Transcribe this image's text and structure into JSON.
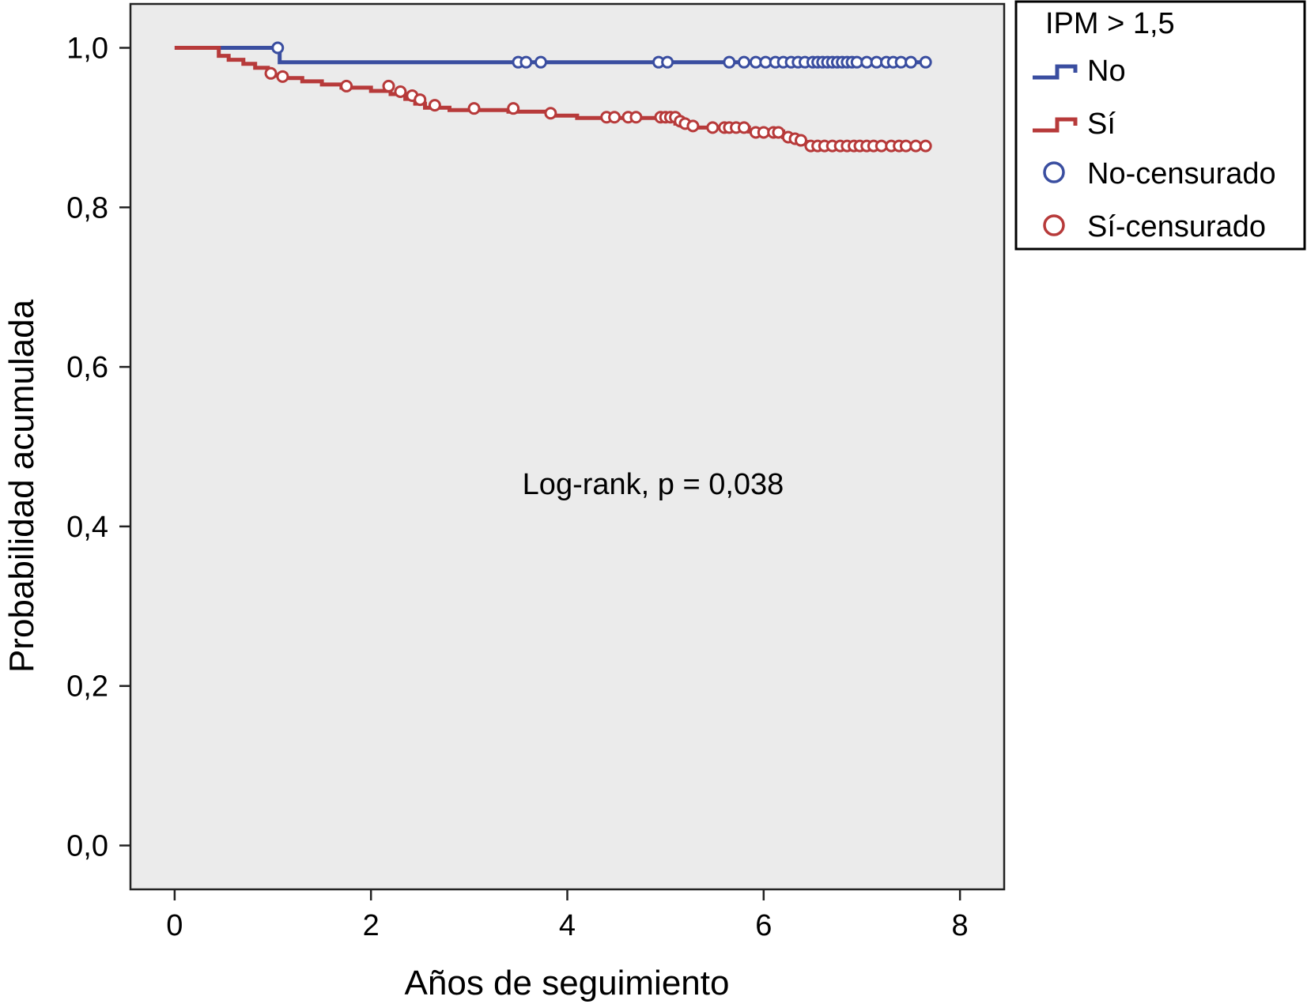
{
  "chart_data": {
    "type": "line",
    "title": "",
    "xlabel": "Años de seguimiento",
    "ylabel": "Probabilidad acumulada",
    "xlim": [
      -0.45,
      8.45
    ],
    "ylim": [
      -0.055,
      1.055
    ],
    "xticks": [
      0,
      2,
      4,
      6,
      8
    ],
    "xtick_labels": [
      "0",
      "2",
      "4",
      "6",
      "8"
    ],
    "yticks": [
      0.0,
      0.2,
      0.4,
      0.6,
      0.8,
      1.0
    ],
    "ytick_labels": [
      "0,0",
      "0,2",
      "0,4",
      "0,6",
      "0,8",
      "1,0"
    ],
    "grid": false,
    "background": "#ebebeb",
    "annotation": "Log-rank, p = 0,038",
    "legend": {
      "title": "IPM > 1,5",
      "placement": "outside-top-right",
      "entries": [
        {
          "label": "No",
          "kind": "step",
          "color": "#3a4ea0"
        },
        {
          "label": "Sí",
          "kind": "step",
          "color": "#b73a3a"
        },
        {
          "label": "No-censurado",
          "kind": "circle",
          "color": "#3a4ea0"
        },
        {
          "label": "Sí-censurado",
          "kind": "circle",
          "color": "#b73a3a"
        }
      ]
    },
    "series": [
      {
        "name": "No",
        "color": "#3a4ea0",
        "step": [
          [
            0,
            1.0
          ],
          [
            1.07,
            1.0
          ],
          [
            1.07,
            0.982
          ],
          [
            7.65,
            0.982
          ]
        ],
        "censored": [
          [
            1.05,
            1.0
          ],
          [
            3.5,
            0.982
          ],
          [
            3.58,
            0.982
          ],
          [
            3.73,
            0.982
          ],
          [
            4.93,
            0.982
          ],
          [
            5.02,
            0.982
          ],
          [
            5.65,
            0.982
          ],
          [
            5.8,
            0.982
          ],
          [
            5.92,
            0.982
          ],
          [
            6.02,
            0.982
          ],
          [
            6.12,
            0.982
          ],
          [
            6.2,
            0.982
          ],
          [
            6.28,
            0.982
          ],
          [
            6.35,
            0.982
          ],
          [
            6.42,
            0.982
          ],
          [
            6.5,
            0.982
          ],
          [
            6.55,
            0.982
          ],
          [
            6.6,
            0.982
          ],
          [
            6.65,
            0.982
          ],
          [
            6.7,
            0.982
          ],
          [
            6.75,
            0.982
          ],
          [
            6.8,
            0.982
          ],
          [
            6.85,
            0.982
          ],
          [
            6.9,
            0.982
          ],
          [
            6.95,
            0.982
          ],
          [
            7.05,
            0.982
          ],
          [
            7.15,
            0.982
          ],
          [
            7.25,
            0.982
          ],
          [
            7.32,
            0.982
          ],
          [
            7.4,
            0.982
          ],
          [
            7.5,
            0.982
          ],
          [
            7.65,
            0.982
          ]
        ]
      },
      {
        "name": "Sí",
        "color": "#b73a3a",
        "step": [
          [
            0,
            1.0
          ],
          [
            0.45,
            1.0
          ],
          [
            0.45,
            0.99
          ],
          [
            0.55,
            0.99
          ],
          [
            0.55,
            0.985
          ],
          [
            0.7,
            0.985
          ],
          [
            0.7,
            0.98
          ],
          [
            0.82,
            0.98
          ],
          [
            0.82,
            0.975
          ],
          [
            0.95,
            0.975
          ],
          [
            0.95,
            0.97
          ],
          [
            1.0,
            0.97
          ],
          [
            1.0,
            0.965
          ],
          [
            1.12,
            0.965
          ],
          [
            1.12,
            0.962
          ],
          [
            1.3,
            0.962
          ],
          [
            1.3,
            0.958
          ],
          [
            1.5,
            0.958
          ],
          [
            1.5,
            0.954
          ],
          [
            1.7,
            0.954
          ],
          [
            1.7,
            0.95
          ],
          [
            2.0,
            0.95
          ],
          [
            2.0,
            0.946
          ],
          [
            2.2,
            0.946
          ],
          [
            2.2,
            0.942
          ],
          [
            2.35,
            0.942
          ],
          [
            2.35,
            0.936
          ],
          [
            2.45,
            0.936
          ],
          [
            2.45,
            0.93
          ],
          [
            2.55,
            0.93
          ],
          [
            2.55,
            0.925
          ],
          [
            2.8,
            0.925
          ],
          [
            2.8,
            0.922
          ],
          [
            3.4,
            0.922
          ],
          [
            3.4,
            0.92
          ],
          [
            3.85,
            0.92
          ],
          [
            3.85,
            0.915
          ],
          [
            4.1,
            0.915
          ],
          [
            4.1,
            0.912
          ],
          [
            5.1,
            0.912
          ],
          [
            5.1,
            0.905
          ],
          [
            5.25,
            0.905
          ],
          [
            5.25,
            0.9
          ],
          [
            5.85,
            0.9
          ],
          [
            5.85,
            0.895
          ],
          [
            6.2,
            0.895
          ],
          [
            6.2,
            0.888
          ],
          [
            6.35,
            0.888
          ],
          [
            6.35,
            0.882
          ],
          [
            6.45,
            0.882
          ],
          [
            6.45,
            0.875
          ],
          [
            7.65,
            0.875
          ]
        ],
        "censored": [
          [
            0.98,
            0.968
          ],
          [
            1.1,
            0.964
          ],
          [
            1.75,
            0.952
          ],
          [
            2.18,
            0.952
          ],
          [
            2.3,
            0.945
          ],
          [
            2.42,
            0.94
          ],
          [
            2.5,
            0.935
          ],
          [
            2.65,
            0.928
          ],
          [
            3.05,
            0.924
          ],
          [
            3.45,
            0.924
          ],
          [
            3.83,
            0.918
          ],
          [
            4.4,
            0.913
          ],
          [
            4.48,
            0.913
          ],
          [
            4.62,
            0.913
          ],
          [
            4.7,
            0.913
          ],
          [
            4.95,
            0.913
          ],
          [
            5.0,
            0.913
          ],
          [
            5.05,
            0.913
          ],
          [
            5.1,
            0.913
          ],
          [
            5.15,
            0.908
          ],
          [
            5.2,
            0.905
          ],
          [
            5.28,
            0.902
          ],
          [
            5.48,
            0.9
          ],
          [
            5.6,
            0.9
          ],
          [
            5.65,
            0.9
          ],
          [
            5.72,
            0.9
          ],
          [
            5.8,
            0.9
          ],
          [
            5.92,
            0.894
          ],
          [
            6.0,
            0.894
          ],
          [
            6.1,
            0.894
          ],
          [
            6.15,
            0.894
          ],
          [
            6.25,
            0.888
          ],
          [
            6.32,
            0.886
          ],
          [
            6.38,
            0.884
          ],
          [
            6.48,
            0.877
          ],
          [
            6.55,
            0.877
          ],
          [
            6.62,
            0.877
          ],
          [
            6.7,
            0.877
          ],
          [
            6.78,
            0.877
          ],
          [
            6.85,
            0.877
          ],
          [
            6.92,
            0.877
          ],
          [
            6.98,
            0.877
          ],
          [
            7.05,
            0.877
          ],
          [
            7.12,
            0.877
          ],
          [
            7.2,
            0.877
          ],
          [
            7.3,
            0.877
          ],
          [
            7.38,
            0.877
          ],
          [
            7.45,
            0.877
          ],
          [
            7.55,
            0.877
          ],
          [
            7.65,
            0.877
          ]
        ]
      }
    ]
  }
}
